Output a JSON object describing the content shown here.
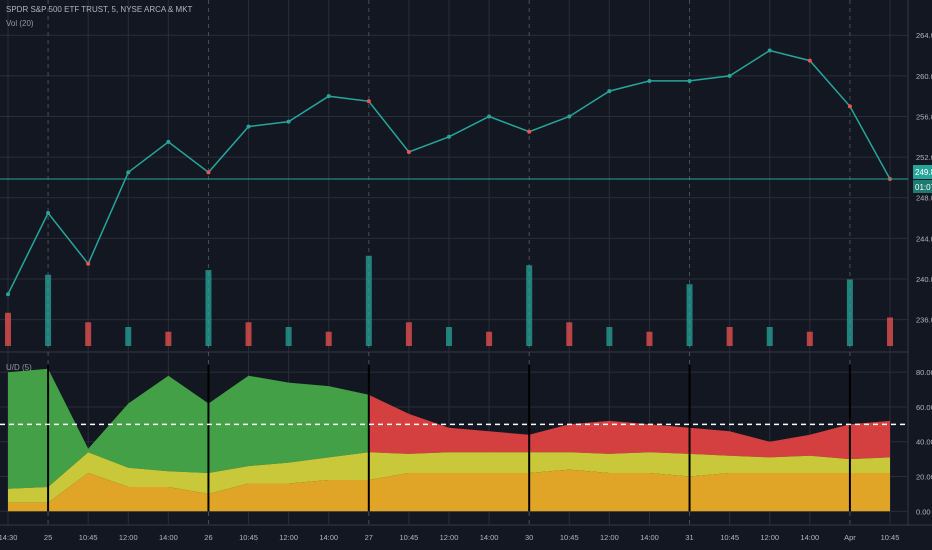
{
  "header": {
    "symbol_title": "SPDR S&P 500 ETF TRUST, 5, NYSE ARCA & MKT",
    "volume_label": "Vol (20)",
    "indicator_label": "U/D (5)"
  },
  "price_axis": {
    "ticks": [
      "264.00",
      "260.00",
      "256.00",
      "252.00",
      "248.00",
      "244.00",
      "240.00",
      "236.00"
    ],
    "last_price": "249.84",
    "countdown": "01:07"
  },
  "indicator_axis": {
    "ticks": [
      "80.00",
      "60.00",
      "40.00",
      "20.00",
      "0.00"
    ]
  },
  "time_axis": {
    "ticks": [
      "14:30",
      "25",
      "10:45",
      "12:00",
      "14:00",
      "26",
      "10:45",
      "12:00",
      "14:00",
      "27",
      "10:45",
      "12:00",
      "14:00",
      "30",
      "10:45",
      "12:00",
      "14:00",
      "31",
      "10:45",
      "12:00",
      "14:00",
      "Apr",
      "10:45"
    ]
  },
  "colors": {
    "background": "#131722",
    "grid": "#2a2e39",
    "up": "#26a69a",
    "down": "#ef5350",
    "green_area": "#43a047",
    "red_area": "#d43f3f",
    "yellow_area": "#c8c83a",
    "orange_area": "#e0a526"
  },
  "chart_data": [
    {
      "type": "line",
      "title": "SPDR S&P 500 ETF TRUST, 5, NYSE ARCA & MKT",
      "xlabel": "",
      "ylabel": "",
      "ylim": [
        233.5,
        265.5
      ],
      "x": [
        "Mar 24 14:30",
        "Mar 25 open",
        "Mar 25 10:45",
        "Mar 25 12:00",
        "Mar 25 14:00",
        "Mar 26 open",
        "Mar 26 10:45",
        "Mar 26 12:00",
        "Mar 26 14:00",
        "Mar 27 open",
        "Mar 27 10:45",
        "Mar 27 12:00",
        "Mar 27 14:00",
        "Mar 30 open",
        "Mar 30 10:45",
        "Mar 30 12:00",
        "Mar 30 14:00",
        "Mar 31 open",
        "Mar 31 10:45",
        "Mar 31 12:00",
        "Mar 31 14:00",
        "Apr 1 open",
        "Apr 1 10:45"
      ],
      "series": [
        {
          "values": [
            238.5,
            246.5,
            241.5,
            250.5,
            253.5,
            250.5,
            255.0,
            255.5,
            258.0,
            257.5,
            252.5,
            254.0,
            256.0,
            254.5,
            256.0,
            258.5,
            259.5,
            259.5,
            260.0,
            262.5,
            261.5,
            257.0,
            249.84
          ]
        }
      ],
      "grid": true,
      "legend": "none"
    },
    {
      "type": "bar",
      "title": "Vol (20)",
      "values": [
        3.5,
        7.5,
        2.5,
        2,
        1.5,
        8,
        2.5,
        2,
        1.5,
        9.5,
        2.5,
        2,
        1.5,
        8.5,
        2.5,
        2,
        1.5,
        6.5,
        2,
        2,
        1.5,
        7,
        3
      ],
      "grid": true
    },
    {
      "type": "area",
      "title": "U/D (5)",
      "ylim": [
        -5,
        87
      ],
      "x": [
        "Mar 24 14:30",
        "Mar 25 open",
        "Mar 25 10:45",
        "Mar 25 12:00",
        "Mar 25 14:00",
        "Mar 26 open",
        "Mar 26 10:45",
        "Mar 26 12:00",
        "Mar 26 14:00",
        "Mar 27 open",
        "Mar 27 10:45",
        "Mar 27 12:00",
        "Mar 27 14:00",
        "Mar 30 open",
        "Mar 30 10:45",
        "Mar 30 12:00",
        "Mar 30 14:00",
        "Mar 31 open",
        "Mar 31 10:45",
        "Mar 31 12:00",
        "Mar 31 14:00",
        "Apr 1 open",
        "Apr 1 10:45"
      ],
      "series": [
        {
          "name": "",
          "values": [
            80,
            82,
            36,
            62,
            78,
            62,
            78,
            74,
            72,
            67,
            56,
            48,
            46,
            44,
            50,
            52,
            50,
            48,
            46,
            40,
            44,
            50,
            52
          ]
        },
        {
          "name": "",
          "values": [
            13,
            14,
            34,
            25,
            23,
            22,
            26,
            28,
            31,
            34,
            33,
            34,
            34,
            34,
            34,
            33,
            34,
            33,
            32,
            31,
            32,
            30,
            31
          ]
        },
        {
          "name": "",
          "values": [
            5,
            5,
            22,
            14,
            14,
            10,
            16,
            16,
            18,
            18,
            22,
            22,
            22,
            22,
            24,
            22,
            22,
            20,
            22,
            22,
            22,
            22,
            22
          ]
        }
      ],
      "reference_line": 50,
      "grid": true,
      "legend": "none"
    }
  ]
}
